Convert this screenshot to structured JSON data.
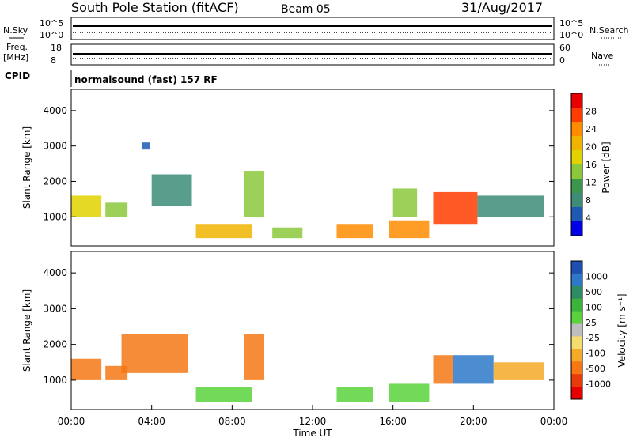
{
  "header": {
    "title": "South Pole Station (fitACF)",
    "beam": "Beam 05",
    "date": "31/Aug/2017"
  },
  "noise_panel": {
    "left_label": "N.Sky",
    "right_label": "N.Search",
    "left_ticks": [
      "10^5",
      "10^0"
    ],
    "right_ticks": [
      "10^5",
      "10^0"
    ]
  },
  "freq_panel": {
    "left_label_line1": "Freq.",
    "left_label_line2": "[MHz]",
    "right_label": "Nave",
    "left_ticks": [
      "18",
      "8"
    ],
    "right_ticks": [
      "60",
      "0"
    ]
  },
  "cpid": {
    "label": "CPID",
    "value": "normalsound (fast) 157 RF"
  },
  "power_panel": {
    "ylabel": "Slant Range [km]",
    "cbar_label": "Power [dB]",
    "cbar_ticks": [
      "28",
      "24",
      "20",
      "16",
      "12",
      "8",
      "4"
    ],
    "cbar_colors": [
      "#e60000",
      "#ff3c00",
      "#ff8c00",
      "#f0b400",
      "#e1d200",
      "#8cc83c",
      "#3c9650",
      "#3c8c78",
      "#1e5ab4",
      "#0000e6"
    ]
  },
  "velocity_panel": {
    "ylabel": "Slant Range [km]",
    "cbar_label": "Velocity [m s⁻¹]",
    "cbar_ticks": [
      "1000",
      "500",
      "100",
      "25",
      "-25",
      "-100",
      "-500",
      "-1000"
    ],
    "cbar_colors": [
      "#1e50b4",
      "#2d78c8",
      "#2d8c64",
      "#3cb43c",
      "#5ad23c",
      "#bebebe",
      "#f5dc6e",
      "#f5aa28",
      "#f57814",
      "#e63c0a",
      "#e60000"
    ]
  },
  "x_axis": {
    "label": "Time UT",
    "ticks": [
      "00:00",
      "04:00",
      "08:00",
      "12:00",
      "16:00",
      "20:00",
      "00:00"
    ]
  },
  "chart_data": {
    "type": "heatmap",
    "title": "South Pole Station (fitACF)",
    "xlabel": "Time UT",
    "ylabel": "Slant Range [km]",
    "xlim_hours": [
      0,
      24
    ],
    "ylim_km": [
      180,
      4600
    ],
    "y_ticks": [
      1000,
      2000,
      3000,
      4000
    ],
    "power_colorbar_ticks_db": [
      4,
      8,
      12,
      16,
      20,
      24,
      28
    ],
    "velocity_colorbar_ticks_ms": [
      -1000,
      -500,
      -100,
      -25,
      25,
      100,
      500,
      1000
    ],
    "power_patches": [
      {
        "t0": 0.0,
        "t1": 1.5,
        "r0": 1000,
        "r1": 1600,
        "power": 18
      },
      {
        "t0": 1.7,
        "t1": 2.8,
        "r0": 1000,
        "r1": 1400,
        "power": 14
      },
      {
        "t0": 3.5,
        "t1": 3.9,
        "r0": 2900,
        "r1": 3100,
        "power": 6
      },
      {
        "t0": 4.0,
        "t1": 6.0,
        "r0": 1300,
        "r1": 2200,
        "power": 10
      },
      {
        "t0": 6.2,
        "t1": 9.0,
        "r0": 400,
        "r1": 800,
        "power": 22
      },
      {
        "t0": 8.6,
        "t1": 9.6,
        "r0": 1000,
        "r1": 2300,
        "power": 14
      },
      {
        "t0": 10.0,
        "t1": 11.5,
        "r0": 400,
        "r1": 700,
        "power": 16
      },
      {
        "t0": 13.2,
        "t1": 15.0,
        "r0": 400,
        "r1": 800,
        "power": 24
      },
      {
        "t0": 15.8,
        "t1": 17.8,
        "r0": 400,
        "r1": 900,
        "power": 25
      },
      {
        "t0": 16.0,
        "t1": 17.2,
        "r0": 1000,
        "r1": 1800,
        "power": 16
      },
      {
        "t0": 18.0,
        "t1": 20.2,
        "r0": 800,
        "r1": 1700,
        "power": 27
      },
      {
        "t0": 20.2,
        "t1": 23.5,
        "r0": 1000,
        "r1": 1600,
        "power": 10
      }
    ],
    "velocity_patches": [
      {
        "t0": 0.0,
        "t1": 1.5,
        "r0": 1000,
        "r1": 1600,
        "velocity": -300
      },
      {
        "t0": 1.7,
        "t1": 2.8,
        "r0": 1000,
        "r1": 1400,
        "velocity": -200
      },
      {
        "t0": 2.5,
        "t1": 5.8,
        "r0": 1200,
        "r1": 2300,
        "velocity": -400
      },
      {
        "t0": 6.2,
        "t1": 9.0,
        "r0": 400,
        "r1": 800,
        "velocity": 80
      },
      {
        "t0": 8.6,
        "t1": 9.6,
        "r0": 1000,
        "r1": 2300,
        "velocity": -300
      },
      {
        "t0": 13.2,
        "t1": 15.0,
        "r0": 400,
        "r1": 800,
        "velocity": 60
      },
      {
        "t0": 15.8,
        "t1": 17.8,
        "r0": 400,
        "r1": 900,
        "velocity": 80
      },
      {
        "t0": 18.0,
        "t1": 19.0,
        "r0": 900,
        "r1": 1700,
        "velocity": -400
      },
      {
        "t0": 19.0,
        "t1": 21.0,
        "r0": 900,
        "r1": 1700,
        "velocity": 600
      },
      {
        "t0": 21.0,
        "t1": 23.5,
        "r0": 1000,
        "r1": 1500,
        "velocity": -100
      }
    ]
  }
}
